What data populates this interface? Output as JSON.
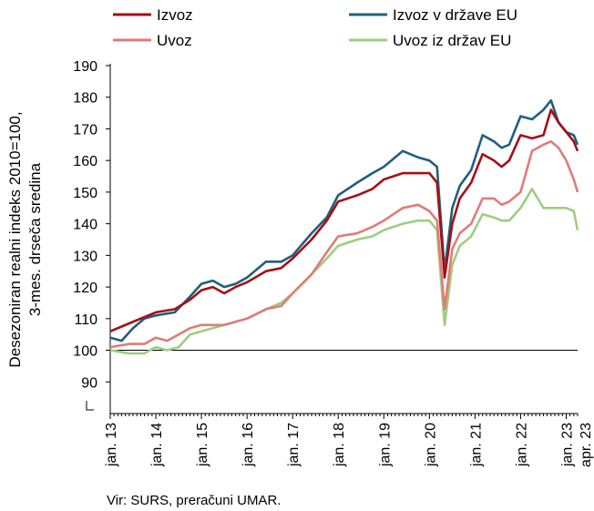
{
  "chart_data": {
    "type": "line",
    "title": "",
    "xlabel": "",
    "ylabel": [
      "Desezoniran realni indeks 2010=100,",
      "3-mes. drseča sredina"
    ],
    "ylim": [
      80,
      190
    ],
    "yticks": [
      "90",
      "100",
      "110",
      "120",
      "130",
      "140",
      "150",
      "160",
      "170",
      "180",
      "190"
    ],
    "xticks": [
      "jan. 13",
      "jan. 14",
      "jan. 15",
      "jan. 16",
      "jan. 17",
      "jan. 18",
      "jan. 19",
      "jan. 20",
      "jan. 21",
      "jan. 22",
      "jan. 23",
      "apr. 23"
    ],
    "x_start": "2013-01",
    "x_end": "2023-04",
    "reference_line": 100,
    "legend_position": "top",
    "series": [
      {
        "name": "Izvoz",
        "color": "#a50f15",
        "points": [
          [
            "2013-01",
            106
          ],
          [
            "2013-06",
            108.5
          ],
          [
            "2013-10",
            110.5
          ],
          [
            "2014-01",
            112
          ],
          [
            "2014-06",
            113
          ],
          [
            "2014-10",
            116
          ],
          [
            "2015-01",
            119
          ],
          [
            "2015-04",
            120
          ],
          [
            "2015-07",
            118
          ],
          [
            "2015-10",
            120
          ],
          [
            "2016-01",
            121.5
          ],
          [
            "2016-06",
            125
          ],
          [
            "2016-10",
            126
          ],
          [
            "2017-01",
            129
          ],
          [
            "2017-06",
            135
          ],
          [
            "2017-10",
            141
          ],
          [
            "2018-01",
            147
          ],
          [
            "2018-06",
            149
          ],
          [
            "2018-10",
            151
          ],
          [
            "2019-01",
            154
          ],
          [
            "2019-06",
            156
          ],
          [
            "2019-10",
            156
          ],
          [
            "2020-01",
            156
          ],
          [
            "2020-03",
            153
          ],
          [
            "2020-05",
            123
          ],
          [
            "2020-07",
            140
          ],
          [
            "2020-09",
            148
          ],
          [
            "2020-12",
            153
          ],
          [
            "2021-03",
            162
          ],
          [
            "2021-06",
            160
          ],
          [
            "2021-08",
            158
          ],
          [
            "2021-10",
            160
          ],
          [
            "2022-01",
            168
          ],
          [
            "2022-04",
            167
          ],
          [
            "2022-07",
            168
          ],
          [
            "2022-09",
            176
          ],
          [
            "2022-11",
            172
          ],
          [
            "2023-01",
            169
          ],
          [
            "2023-03",
            166
          ],
          [
            "2023-04",
            163
          ]
        ]
      },
      {
        "name": "Izvoz v države EU",
        "color": "#1f5f7f",
        "points": [
          [
            "2013-01",
            104
          ],
          [
            "2013-04",
            103
          ],
          [
            "2013-07",
            107
          ],
          [
            "2013-10",
            110
          ],
          [
            "2014-01",
            111
          ],
          [
            "2014-06",
            112
          ],
          [
            "2014-10",
            117
          ],
          [
            "2015-01",
            121
          ],
          [
            "2015-04",
            122
          ],
          [
            "2015-07",
            120
          ],
          [
            "2015-10",
            121
          ],
          [
            "2016-01",
            123
          ],
          [
            "2016-06",
            128
          ],
          [
            "2016-10",
            128
          ],
          [
            "2017-01",
            130
          ],
          [
            "2017-06",
            137
          ],
          [
            "2017-10",
            142
          ],
          [
            "2018-01",
            149
          ],
          [
            "2018-06",
            153
          ],
          [
            "2018-10",
            156
          ],
          [
            "2019-01",
            158
          ],
          [
            "2019-06",
            163
          ],
          [
            "2019-10",
            161
          ],
          [
            "2020-01",
            160
          ],
          [
            "2020-03",
            158
          ],
          [
            "2020-05",
            125
          ],
          [
            "2020-07",
            145
          ],
          [
            "2020-09",
            152
          ],
          [
            "2020-12",
            157
          ],
          [
            "2021-03",
            168
          ],
          [
            "2021-06",
            166
          ],
          [
            "2021-08",
            164
          ],
          [
            "2021-10",
            165
          ],
          [
            "2022-01",
            174
          ],
          [
            "2022-04",
            173
          ],
          [
            "2022-07",
            176
          ],
          [
            "2022-09",
            179
          ],
          [
            "2022-11",
            172
          ],
          [
            "2023-01",
            169
          ],
          [
            "2023-03",
            168
          ],
          [
            "2023-04",
            165
          ]
        ]
      },
      {
        "name": "Uvoz",
        "color": "#e07b78",
        "points": [
          [
            "2013-01",
            101
          ],
          [
            "2013-06",
            102
          ],
          [
            "2013-10",
            102
          ],
          [
            "2014-01",
            104
          ],
          [
            "2014-04",
            103
          ],
          [
            "2014-07",
            105
          ],
          [
            "2014-10",
            107
          ],
          [
            "2015-01",
            108
          ],
          [
            "2015-04",
            108
          ],
          [
            "2015-07",
            108
          ],
          [
            "2015-10",
            109
          ],
          [
            "2016-01",
            110
          ],
          [
            "2016-06",
            113
          ],
          [
            "2016-10",
            114
          ],
          [
            "2017-01",
            118
          ],
          [
            "2017-06",
            124
          ],
          [
            "2017-10",
            131
          ],
          [
            "2018-01",
            136
          ],
          [
            "2018-06",
            137
          ],
          [
            "2018-10",
            139
          ],
          [
            "2019-01",
            141
          ],
          [
            "2019-06",
            145
          ],
          [
            "2019-10",
            146
          ],
          [
            "2020-01",
            144
          ],
          [
            "2020-03",
            141
          ],
          [
            "2020-05",
            113
          ],
          [
            "2020-07",
            132
          ],
          [
            "2020-09",
            137
          ],
          [
            "2020-12",
            140
          ],
          [
            "2021-03",
            148
          ],
          [
            "2021-06",
            148
          ],
          [
            "2021-08",
            146
          ],
          [
            "2021-10",
            147
          ],
          [
            "2022-01",
            150
          ],
          [
            "2022-04",
            163
          ],
          [
            "2022-07",
            165
          ],
          [
            "2022-09",
            166
          ],
          [
            "2022-11",
            164
          ],
          [
            "2023-01",
            160
          ],
          [
            "2023-03",
            154
          ],
          [
            "2023-04",
            150
          ]
        ]
      },
      {
        "name": "Uvoz iz držav EU",
        "color": "#9dce82",
        "points": [
          [
            "2013-01",
            100
          ],
          [
            "2013-06",
            99
          ],
          [
            "2013-10",
            99
          ],
          [
            "2014-01",
            101
          ],
          [
            "2014-04",
            100
          ],
          [
            "2014-07",
            101
          ],
          [
            "2014-10",
            105
          ],
          [
            "2015-01",
            106
          ],
          [
            "2015-04",
            107
          ],
          [
            "2015-07",
            108
          ],
          [
            "2015-10",
            109
          ],
          [
            "2016-01",
            110
          ],
          [
            "2016-06",
            113
          ],
          [
            "2016-10",
            115
          ],
          [
            "2017-01",
            118
          ],
          [
            "2017-06",
            124
          ],
          [
            "2017-10",
            129
          ],
          [
            "2018-01",
            133
          ],
          [
            "2018-06",
            135
          ],
          [
            "2018-10",
            136
          ],
          [
            "2019-01",
            138
          ],
          [
            "2019-06",
            140
          ],
          [
            "2019-10",
            141
          ],
          [
            "2020-01",
            141
          ],
          [
            "2020-03",
            138
          ],
          [
            "2020-05",
            108
          ],
          [
            "2020-07",
            127
          ],
          [
            "2020-09",
            133
          ],
          [
            "2020-12",
            136
          ],
          [
            "2021-03",
            143
          ],
          [
            "2021-06",
            142
          ],
          [
            "2021-08",
            141
          ],
          [
            "2021-10",
            141
          ],
          [
            "2022-01",
            145
          ],
          [
            "2022-04",
            151
          ],
          [
            "2022-07",
            145
          ],
          [
            "2022-09",
            145
          ],
          [
            "2022-11",
            145
          ],
          [
            "2023-01",
            145
          ],
          [
            "2023-03",
            144
          ],
          [
            "2023-04",
            138
          ]
        ]
      }
    ]
  },
  "source": "Vir: SURS, preračuni UMAR."
}
